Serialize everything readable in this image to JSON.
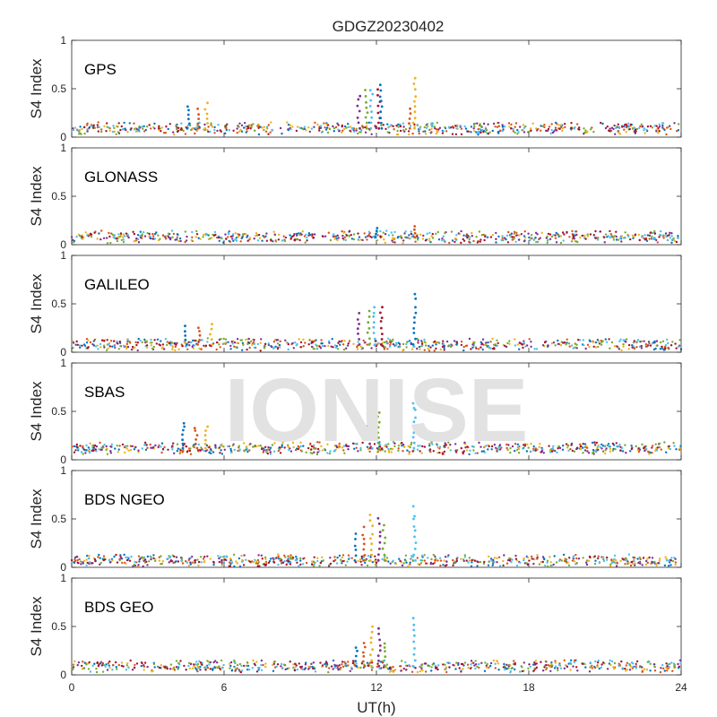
{
  "chart_data": {
    "type": "scatter",
    "title": "GDGZ20230402",
    "xlabel": "UT(h)",
    "ylabel": "S4 Index",
    "xlim": [
      0,
      24
    ],
    "ylim": [
      0,
      1
    ],
    "xticks": [
      0,
      6,
      12,
      18,
      24
    ],
    "yticks": [
      0,
      0.5,
      1
    ],
    "ytick_labels": [
      "0",
      "0.5",
      "1"
    ],
    "watermark": "IONISE",
    "series_colors": [
      "#0072bd",
      "#d95319",
      "#edb120",
      "#7e2f8e",
      "#77ac30",
      "#4dbeee",
      "#a2142f"
    ],
    "panels": [
      {
        "name": "GPS",
        "baseline": 0.09,
        "spikes": [
          {
            "x": 4.6,
            "y": 0.34
          },
          {
            "x": 5.0,
            "y": 0.3
          },
          {
            "x": 5.3,
            "y": 0.36
          },
          {
            "x": 11.3,
            "y": 0.45
          },
          {
            "x": 11.6,
            "y": 0.5
          },
          {
            "x": 11.8,
            "y": 0.52
          },
          {
            "x": 12.1,
            "y": 0.5
          },
          {
            "x": 12.2,
            "y": 0.55
          },
          {
            "x": 13.3,
            "y": 0.3
          },
          {
            "x": 13.5,
            "y": 0.62
          }
        ]
      },
      {
        "name": "GLONASS",
        "baseline": 0.08,
        "spikes": [
          {
            "x": 12.0,
            "y": 0.18
          },
          {
            "x": 13.5,
            "y": 0.2
          }
        ]
      },
      {
        "name": "GALILEO",
        "baseline": 0.08,
        "spikes": [
          {
            "x": 4.5,
            "y": 0.28
          },
          {
            "x": 5.0,
            "y": 0.27
          },
          {
            "x": 5.5,
            "y": 0.3
          },
          {
            "x": 11.3,
            "y": 0.42
          },
          {
            "x": 11.7,
            "y": 0.45
          },
          {
            "x": 11.9,
            "y": 0.5
          },
          {
            "x": 12.2,
            "y": 0.5
          },
          {
            "x": 13.5,
            "y": 0.62
          }
        ]
      },
      {
        "name": "SBAS",
        "baseline": 0.12,
        "spikes": [
          {
            "x": 4.4,
            "y": 0.4
          },
          {
            "x": 4.9,
            "y": 0.35
          },
          {
            "x": 5.3,
            "y": 0.35
          },
          {
            "x": 11.7,
            "y": 0.4
          },
          {
            "x": 12.1,
            "y": 0.5
          },
          {
            "x": 13.5,
            "y": 0.63
          }
        ]
      },
      {
        "name": "BDS NGEO",
        "baseline": 0.07,
        "spikes": [
          {
            "x": 11.2,
            "y": 0.35
          },
          {
            "x": 11.5,
            "y": 0.42
          },
          {
            "x": 11.8,
            "y": 0.55
          },
          {
            "x": 12.1,
            "y": 0.52
          },
          {
            "x": 12.3,
            "y": 0.45
          },
          {
            "x": 13.5,
            "y": 0.64
          }
        ]
      },
      {
        "name": "BDS GEO",
        "baseline": 0.09,
        "spikes": [
          {
            "x": 11.2,
            "y": 0.3
          },
          {
            "x": 11.5,
            "y": 0.35
          },
          {
            "x": 11.8,
            "y": 0.52
          },
          {
            "x": 12.1,
            "y": 0.5
          },
          {
            "x": 12.3,
            "y": 0.35
          },
          {
            "x": 13.5,
            "y": 0.6
          }
        ]
      }
    ]
  }
}
